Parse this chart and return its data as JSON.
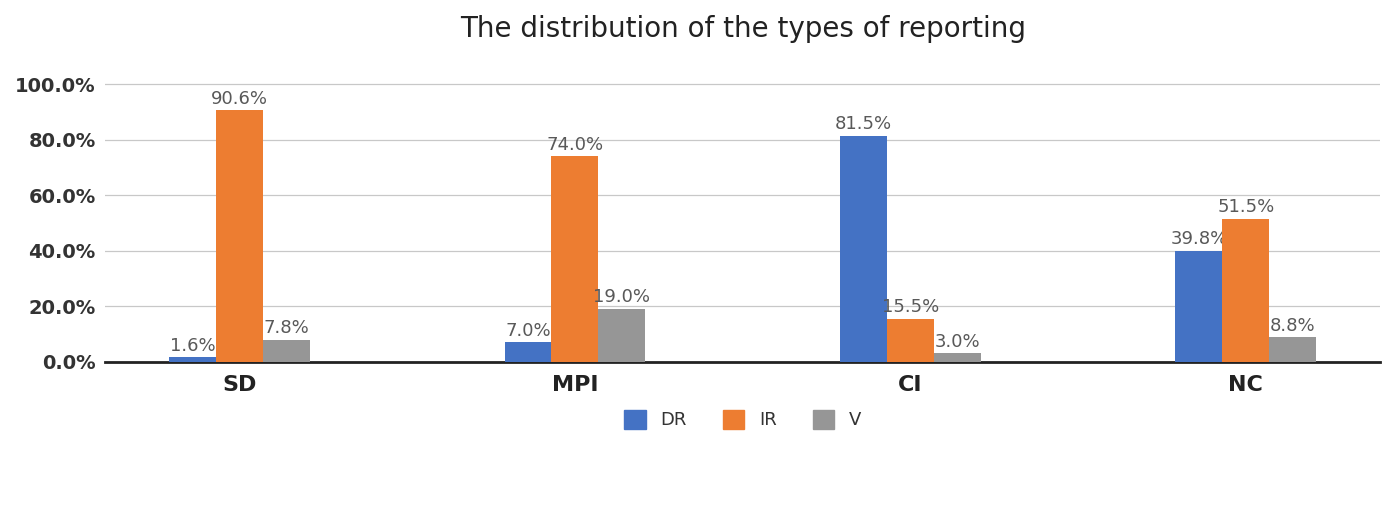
{
  "title": "The distribution of the types of reporting",
  "categories": [
    "SD",
    "MPI",
    "CI",
    "NC"
  ],
  "series": {
    "DR": [
      1.6,
      7.0,
      81.5,
      39.8
    ],
    "IR": [
      90.6,
      74.0,
      15.5,
      51.5
    ],
    "V": [
      7.8,
      19.0,
      3.0,
      8.8
    ]
  },
  "colors": {
    "DR": "#4472C4",
    "IR": "#ED7D31",
    "V": "#969696"
  },
  "ylim": [
    0,
    108
  ],
  "yticks": [
    0,
    20,
    40,
    60,
    80,
    100
  ],
  "ytick_labels": [
    "0.0%",
    "20.0%",
    "40.0%",
    "60.0%",
    "80.0%",
    "100.0%"
  ],
  "bar_width": 0.28,
  "title_fontsize": 20,
  "label_fontsize": 13,
  "tick_fontsize": 14,
  "legend_fontsize": 13,
  "background_color": "#ffffff",
  "grid_color": "#c8c8c8",
  "label_color": "#595959"
}
